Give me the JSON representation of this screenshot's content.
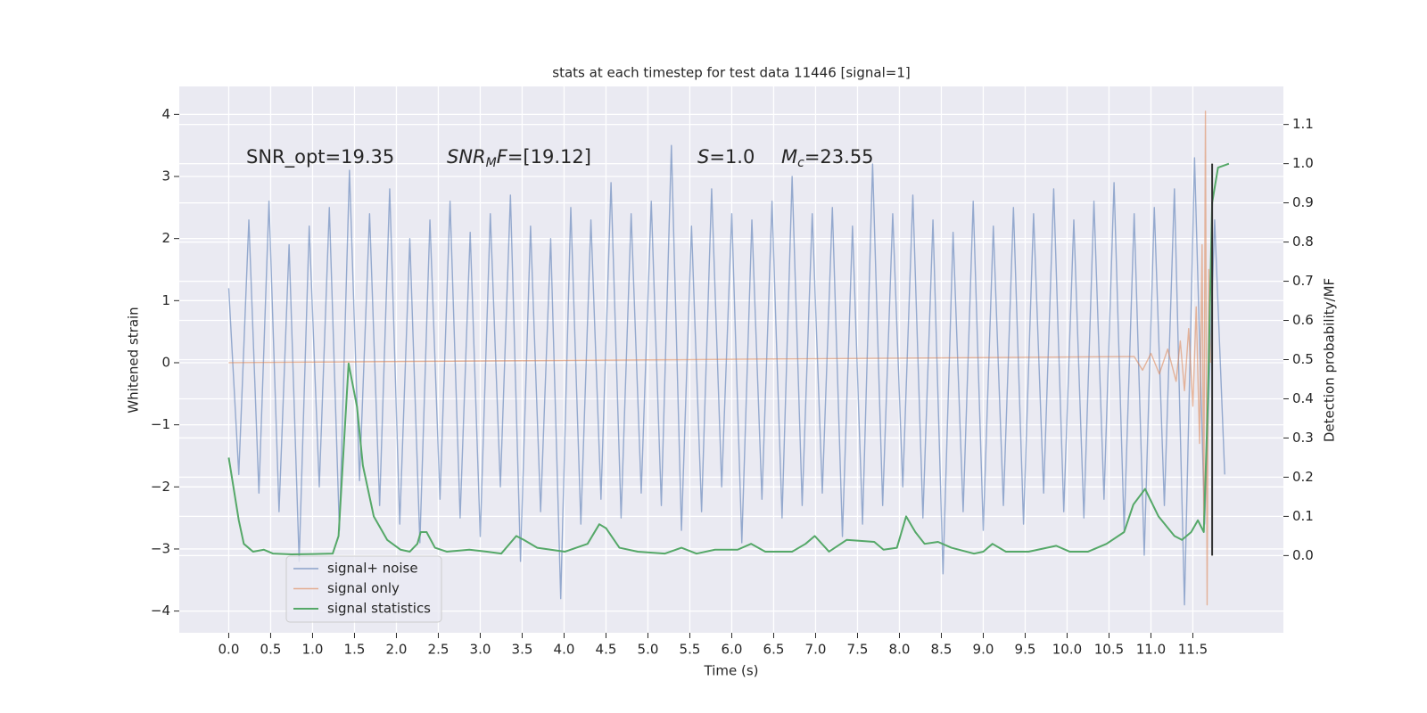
{
  "chart_data": {
    "type": "line",
    "title": "stats at each timestep for test data 11446 [signal=1]",
    "xlabel": "Time (s)",
    "ylabel": "Whitened strain",
    "y2label": "Detection probability/MF",
    "annotations": [
      [
        {
          "text": "SNR_opt=19.35"
        }
      ],
      [
        {
          "text": "SNR",
          "italic": true
        },
        {
          "text": "M",
          "italic": true,
          "sub": true
        },
        {
          "text": "F",
          "italic": true
        },
        {
          "text": "=[19.12]"
        }
      ],
      [
        {
          "text": "S",
          "italic": true
        },
        {
          "text": "=1.0"
        }
      ],
      [
        {
          "text": "M",
          "italic": true
        },
        {
          "text": "c",
          "italic": true,
          "sub": true
        },
        {
          "text": "=23.55"
        }
      ]
    ],
    "xlim": [
      -0.59,
      12.58
    ],
    "ylim": [
      -4.35,
      4.45
    ],
    "y2lim": [
      -0.197,
      1.197
    ],
    "xticks": [
      {
        "value": 0,
        "label": "0.0"
      },
      0.5,
      {
        "value": 1,
        "label": "1.0"
      },
      1.5,
      {
        "value": 2,
        "label": "2.0"
      },
      2.5,
      {
        "value": 3,
        "label": "3.0"
      },
      3.5,
      {
        "value": 4,
        "label": "4.0"
      },
      4.5,
      {
        "value": 5,
        "label": "5.0"
      },
      5.5,
      {
        "value": 6,
        "label": "6.0"
      },
      6.5,
      {
        "value": 7,
        "label": "7.0"
      },
      7.5,
      {
        "value": 8,
        "label": "8.0"
      },
      8.5,
      {
        "value": 9,
        "label": "9.0"
      },
      9.5,
      {
        "value": 10,
        "label": "10.0"
      },
      10.5,
      {
        "value": 11,
        "label": "11.0"
      },
      11.5
    ],
    "yticks": [
      {
        "value": -4,
        "label": "−4"
      },
      {
        "value": -3,
        "label": "−3"
      },
      {
        "value": -2,
        "label": "−2"
      },
      {
        "value": -1,
        "label": "−1"
      },
      0,
      1,
      2,
      3,
      4
    ],
    "y2ticks": [
      {
        "value": 0,
        "label": "0.0"
      },
      0.1,
      0.2,
      0.3,
      0.4,
      0.5,
      0.6,
      0.7,
      0.8,
      0.9,
      {
        "value": 1,
        "label": "1.0"
      },
      1.1
    ],
    "grid": true,
    "legend": "lower left",
    "series": [
      {
        "name": "signal+ noise",
        "color": "#4c72b0",
        "x": [
          0,
          0.12,
          0.24,
          0.36,
          0.48,
          0.6,
          0.72,
          0.84,
          0.96,
          1.08,
          1.2,
          1.32,
          1.44,
          1.56,
          1.68,
          1.8,
          1.92,
          2.04,
          2.16,
          2.28,
          2.4,
          2.52,
          2.64,
          2.76,
          2.88,
          3,
          3.12,
          3.24,
          3.36,
          3.48,
          3.6,
          3.72,
          3.84,
          3.96,
          4.08,
          4.2,
          4.32,
          4.44,
          4.56,
          4.68,
          4.8,
          4.92,
          5.04,
          5.16,
          5.28,
          5.4,
          5.52,
          5.64,
          5.76,
          5.88,
          6,
          6.12,
          6.24,
          6.36,
          6.48,
          6.6,
          6.72,
          6.84,
          6.96,
          7.08,
          7.2,
          7.32,
          7.44,
          7.56,
          7.68,
          7.8,
          7.92,
          8.04,
          8.16,
          8.28,
          8.4,
          8.52,
          8.64,
          8.76,
          8.88,
          9,
          9.12,
          9.24,
          9.36,
          9.48,
          9.6,
          9.72,
          9.84,
          9.96,
          10.08,
          10.2,
          10.32,
          10.44,
          10.56,
          10.68,
          10.8,
          10.92,
          11.04,
          11.16,
          11.28,
          11.4,
          11.52,
          11.64,
          11.76,
          11.88
        ],
        "values": [
          1.2,
          -1.8,
          2.3,
          -2.1,
          2.6,
          -2.4,
          1.9,
          -3.2,
          2.2,
          -2.0,
          2.5,
          -2.7,
          3.1,
          -1.9,
          2.4,
          -2.3,
          2.8,
          -2.6,
          2.0,
          -2.9,
          2.3,
          -2.2,
          2.6,
          -2.5,
          2.1,
          -2.8,
          2.4,
          -2.0,
          2.7,
          -3.2,
          2.2,
          -2.4,
          2.0,
          -3.8,
          2.5,
          -2.6,
          2.3,
          -2.2,
          2.9,
          -2.5,
          2.4,
          -2.1,
          2.6,
          -2.3,
          3.5,
          -2.7,
          2.2,
          -2.4,
          2.8,
          -2.0,
          2.4,
          -2.9,
          2.3,
          -2.2,
          2.6,
          -2.5,
          3.0,
          -2.3,
          2.4,
          -2.1,
          2.5,
          -2.8,
          2.2,
          -2.6,
          3.2,
          -2.3,
          2.4,
          -2.0,
          2.7,
          -2.5,
          2.3,
          -3.4,
          2.1,
          -2.4,
          2.6,
          -2.7,
          2.2,
          -2.3,
          2.5,
          -2.6,
          2.4,
          -2.1,
          2.8,
          -2.4,
          2.3,
          -2.5,
          2.6,
          -2.2,
          2.9,
          -2.7,
          2.4,
          -3.1,
          2.5,
          -2.3,
          2.8,
          -3.9,
          3.3,
          -2.6,
          2.3,
          -1.8
        ]
      },
      {
        "name": "signal only",
        "color": "#dd8452",
        "x": [
          0,
          10.8,
          10.9,
          11.0,
          11.1,
          11.2,
          11.3,
          11.35,
          11.4,
          11.45,
          11.5,
          11.54,
          11.58,
          11.61,
          11.63,
          11.65,
          11.67,
          11.69,
          11.71
        ],
        "values": [
          0,
          0.1,
          -0.12,
          0.15,
          -0.18,
          0.22,
          -0.3,
          0.35,
          -0.45,
          0.55,
          -0.7,
          0.9,
          -1.3,
          1.9,
          -2.6,
          4.05,
          -3.9,
          1.5,
          0
        ]
      },
      {
        "name": "signal statistics",
        "color": "#55a868",
        "axis": "y2",
        "x": [
          0,
          0.12,
          0.18,
          0.29,
          0.42,
          0.53,
          0.75,
          1.02,
          1.24,
          1.31,
          1.43,
          1.53,
          1.6,
          1.73,
          1.89,
          2.05,
          2.16,
          2.25,
          2.29,
          2.36,
          2.46,
          2.6,
          2.87,
          3.08,
          3.25,
          3.43,
          3.52,
          3.68,
          4.01,
          4.28,
          4.42,
          4.5,
          4.66,
          4.88,
          5.2,
          5.4,
          5.58,
          5.8,
          6.07,
          6.23,
          6.4,
          6.72,
          6.88,
          6.99,
          7.16,
          7.37,
          7.7,
          7.81,
          7.97,
          8.08,
          8.19,
          8.3,
          8.46,
          8.62,
          8.89,
          9.0,
          9.11,
          9.27,
          9.54,
          9.87,
          10.03,
          10.25,
          10.47,
          10.68,
          10.79,
          10.93,
          11.09,
          11.28,
          11.37,
          11.48,
          11.56,
          11.63,
          11.68,
          11.73,
          11.8,
          11.93
        ],
        "values": [
          0.25,
          0.09,
          0.03,
          0.01,
          0.015,
          0.005,
          0.003,
          0.004,
          0.005,
          0.05,
          0.49,
          0.38,
          0.23,
          0.1,
          0.04,
          0.015,
          0.01,
          0.03,
          0.06,
          0.06,
          0.02,
          0.01,
          0.015,
          0.01,
          0.005,
          0.05,
          0.04,
          0.02,
          0.01,
          0.03,
          0.08,
          0.07,
          0.02,
          0.01,
          0.005,
          0.02,
          0.005,
          0.015,
          0.015,
          0.03,
          0.01,
          0.01,
          0.03,
          0.05,
          0.01,
          0.04,
          0.035,
          0.015,
          0.02,
          0.1,
          0.06,
          0.03,
          0.035,
          0.02,
          0.005,
          0.01,
          0.03,
          0.01,
          0.01,
          0.025,
          0.01,
          0.01,
          0.03,
          0.06,
          0.13,
          0.17,
          0.1,
          0.05,
          0.04,
          0.06,
          0.09,
          0.06,
          0.4,
          0.9,
          0.99,
          1.0
        ]
      }
    ],
    "vline": {
      "x": 11.73,
      "y2": [
        0,
        1.0
      ],
      "color": "#333333"
    }
  }
}
